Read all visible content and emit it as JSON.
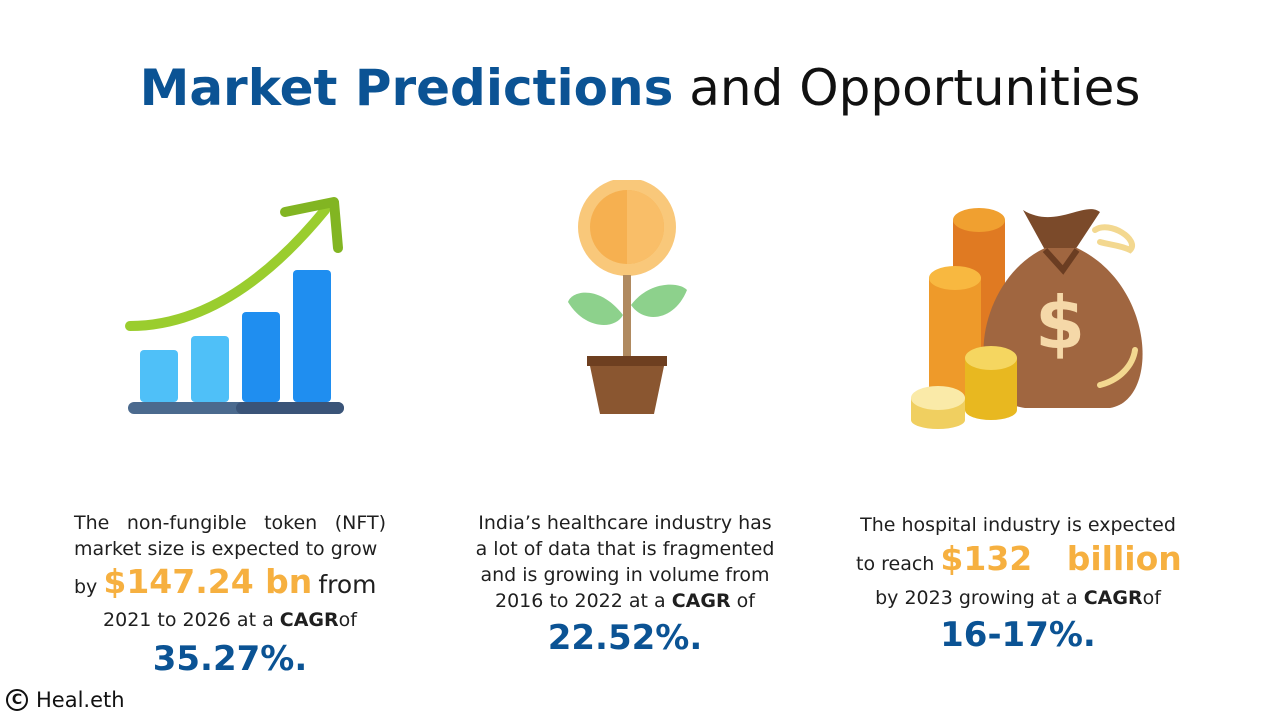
{
  "title": {
    "bold": "Market Predictions",
    "rest": "and Opportunities"
  },
  "columns": [
    {
      "icon": "growth-chart-icon",
      "line1": "The non-fungible token (NFT) market size is expected to grow",
      "by": "by",
      "highlight": "$147.24 bn",
      "from": "from",
      "line3_pre": "2021 to 2026 at a",
      "cagr": "CAGR",
      "line3_post": "of",
      "percent": "35.27%."
    },
    {
      "icon": "money-plant-icon",
      "line1": "India’s healthcare industry has a lot of data that is fragmented and is growing in volume from",
      "line3_pre": "2016 to 2022 at a",
      "cagr": "CAGR",
      "line3_post": "of",
      "percent": "22.52%."
    },
    {
      "icon": "money-bag-icon",
      "line1": "The hospital industry is expected",
      "reach": "to reach",
      "highlight": "$132   billion",
      "line3_pre": "by 2023 growing at a",
      "cagr": "CAGR",
      "line3_post": "of",
      "percent": "16-17%."
    }
  ],
  "footer": {
    "copyright_symbol": "C",
    "brand": "Heal.eth"
  },
  "colors": {
    "title_blue": "#0b5394",
    "highlight_orange": "#f6b040"
  }
}
